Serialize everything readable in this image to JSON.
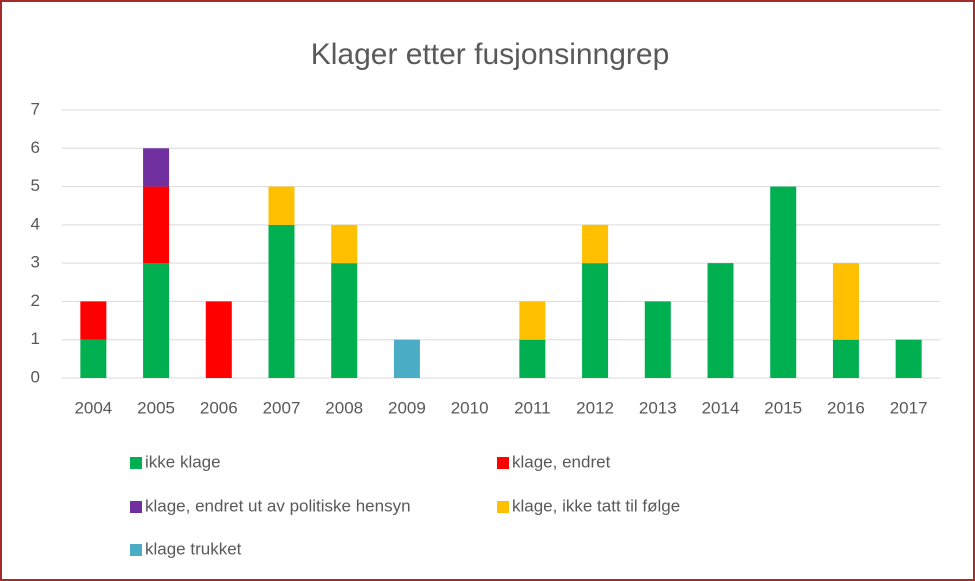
{
  "chart_data": {
    "type": "stacked_bar",
    "title": "Klager etter fusjonsinngrep",
    "categories": [
      "2004",
      "2005",
      "2006",
      "2007",
      "2008",
      "2009",
      "2010",
      "2011",
      "2012",
      "2013",
      "2014",
      "2015",
      "2016",
      "2017"
    ],
    "series": [
      {
        "name": "ikke klage",
        "color": "#00b050",
        "values": [
          1,
          3,
          0,
          4,
          3,
          0,
          0,
          1,
          3,
          2,
          3,
          5,
          1,
          1
        ]
      },
      {
        "name": "klage, endret",
        "color": "#ff0000",
        "values": [
          1,
          2,
          2,
          0,
          0,
          0,
          0,
          0,
          0,
          0,
          0,
          0,
          0,
          0
        ]
      },
      {
        "name": "klage, endret ut av politiske hensyn",
        "color": "#7030a0",
        "values": [
          0,
          1,
          0,
          0,
          0,
          0,
          0,
          0,
          0,
          0,
          0,
          0,
          0,
          0
        ]
      },
      {
        "name": "klage, ikke tatt til følge",
        "color": "#ffc000",
        "values": [
          0,
          0,
          0,
          1,
          1,
          0,
          0,
          1,
          1,
          0,
          0,
          0,
          2,
          0
        ]
      },
      {
        "name": "klage trukket",
        "color": "#4bacc6",
        "values": [
          0,
          0,
          0,
          0,
          0,
          1,
          0,
          0,
          0,
          0,
          0,
          0,
          0,
          0
        ]
      }
    ],
    "ylim": [
      0,
      7
    ],
    "yticks": [
      0,
      1,
      2,
      3,
      4,
      5,
      6,
      7
    ],
    "grid": true,
    "legend": "bottom"
  }
}
